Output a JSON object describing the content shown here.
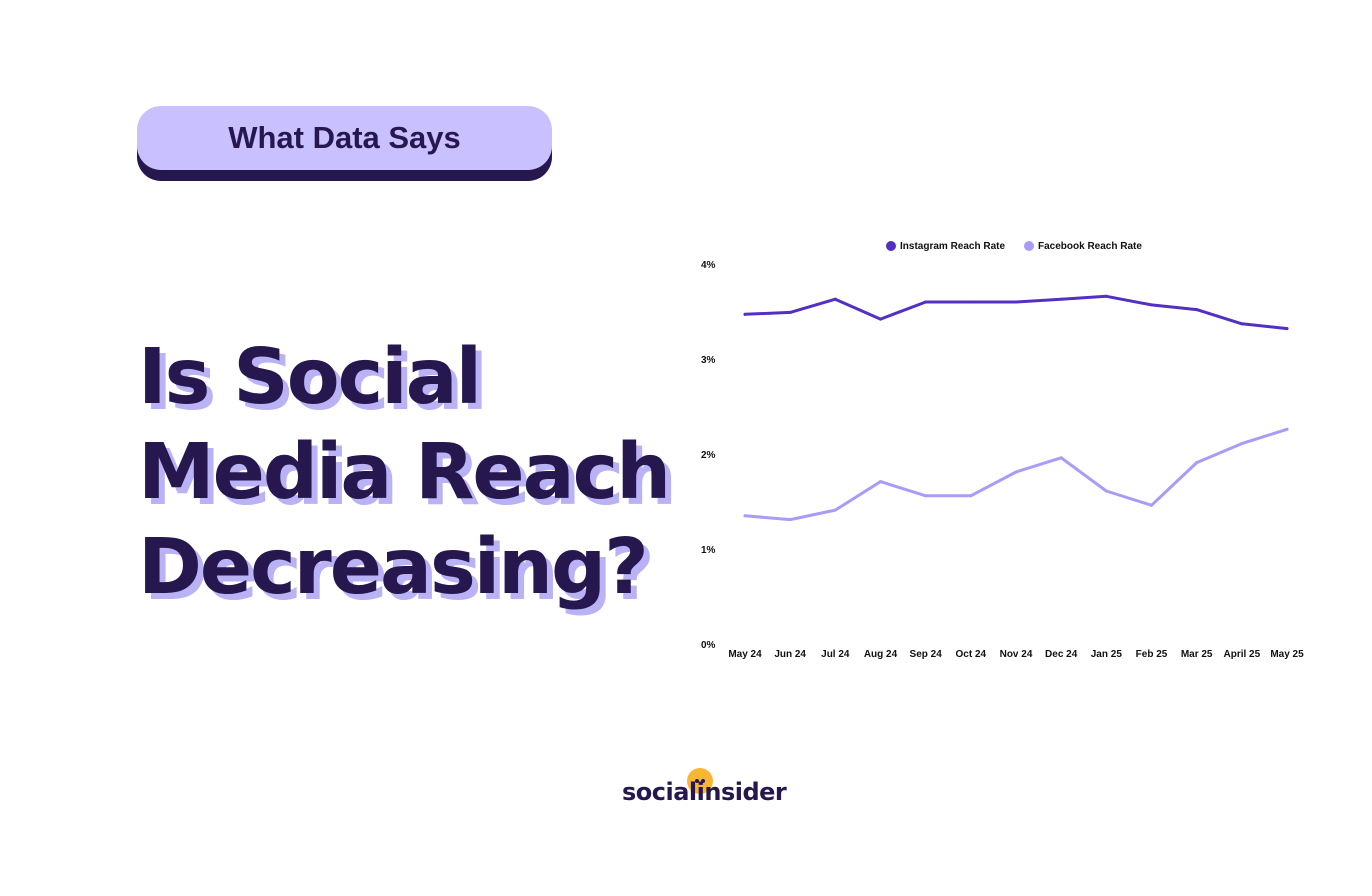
{
  "badge": {
    "label": "What Data Says"
  },
  "headline": {
    "lines": [
      "Is Social",
      "Media Reach",
      "Decreasing?"
    ]
  },
  "brand": {
    "name": "socialinsider"
  },
  "colors": {
    "dark": "#26174f",
    "badge_bg": "#c8c0ff",
    "instagram": "#5330c2",
    "facebook": "#a99bf7",
    "logo_dot": "#f7b733"
  },
  "chart_data": {
    "type": "line",
    "categories": [
      "May 24",
      "Jun 24",
      "Jul 24",
      "Aug 24",
      "Sep 24",
      "Oct 24",
      "Nov 24",
      "Dec 24",
      "Jan 25",
      "Feb 25",
      "Mar 25",
      "April 25",
      "May 25"
    ],
    "series": [
      {
        "name": "Instagram Reach Rate",
        "values": [
          3.47,
          3.49,
          3.63,
          3.42,
          3.6,
          3.6,
          3.6,
          3.63,
          3.66,
          3.57,
          3.52,
          3.37,
          3.32
        ]
      },
      {
        "name": "Facebook Reach Rate",
        "values": [
          1.35,
          1.31,
          1.41,
          1.71,
          1.56,
          1.56,
          1.81,
          1.96,
          1.61,
          1.46,
          1.91,
          2.11,
          2.26
        ]
      }
    ],
    "yticks": [
      "0%",
      "1%",
      "2%",
      "3%",
      "4%"
    ],
    "ylim": [
      0,
      4
    ],
    "legend": "top",
    "grid": false
  }
}
